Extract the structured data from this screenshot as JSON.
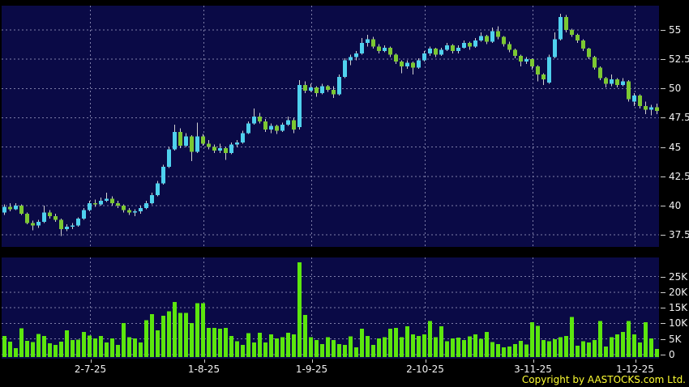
{
  "copyright": "Copyright by AASTOCKS.com Ltd.",
  "colors": {
    "background": "#000000",
    "panel_background": "#0a0a46",
    "grid": "#7d7da8",
    "up_candle": "#4fd1ee",
    "down_candle": "#7cc832",
    "wick": "#d0d0d0",
    "volume_bar": "#5ce60e",
    "axis_text": "#f0f0f0",
    "copyright_text": "#ffff33"
  },
  "chart_data": {
    "type": "candlestick_with_volume",
    "title": "",
    "price_axis": {
      "side": "right",
      "ticks": [
        {
          "label": "55",
          "value": 55
        },
        {
          "label": "52.5",
          "value": 52.5
        },
        {
          "label": "50",
          "value": 50
        },
        {
          "label": "47.5",
          "value": 47.5
        },
        {
          "label": "45",
          "value": 45
        },
        {
          "label": "42.5",
          "value": 42.5
        },
        {
          "label": "40",
          "value": 40
        },
        {
          "label": "37.5",
          "value": 37.5
        }
      ],
      "range": [
        36.4,
        57.1
      ]
    },
    "volume_axis": {
      "side": "right",
      "ticks": [
        {
          "label": "25K",
          "value": 25
        },
        {
          "label": "20K",
          "value": 20
        },
        {
          "label": "15K",
          "value": 15
        },
        {
          "label": "10K",
          "value": 10
        },
        {
          "label": "5K",
          "value": 5
        },
        {
          "label": "0",
          "value": 0
        }
      ],
      "range": [
        0,
        31
      ]
    },
    "x_ticks": [
      {
        "index": 15,
        "label": "2-7-25"
      },
      {
        "index": 35,
        "label": "1-8-25"
      },
      {
        "index": 54,
        "label": "1-9-25"
      },
      {
        "index": 74,
        "label": "2-10-25"
      },
      {
        "index": 93,
        "label": "3-11-25"
      },
      {
        "index": 111,
        "label": "1-12-25"
      }
    ],
    "candles": [
      [
        39.4,
        40.1,
        39.2,
        39.9
      ],
      [
        39.9,
        40.2,
        39.5,
        39.7
      ],
      [
        39.7,
        40.2,
        39.6,
        40.0
      ],
      [
        40.0,
        40.1,
        39.2,
        39.3
      ],
      [
        39.3,
        39.4,
        38.4,
        38.5
      ],
      [
        38.5,
        38.7,
        37.9,
        38.3
      ],
      [
        38.3,
        38.8,
        38.1,
        38.6
      ],
      [
        38.6,
        40.0,
        38.5,
        39.4
      ],
      [
        39.4,
        39.6,
        38.9,
        39.1
      ],
      [
        39.1,
        39.3,
        38.6,
        38.8
      ],
      [
        38.8,
        38.9,
        37.4,
        38.0
      ],
      [
        38.0,
        38.4,
        37.8,
        38.2
      ],
      [
        38.2,
        38.5,
        38.0,
        38.3
      ],
      [
        38.3,
        39.0,
        38.2,
        38.9
      ],
      [
        38.9,
        39.8,
        38.8,
        39.6
      ],
      [
        39.6,
        40.4,
        39.5,
        40.2
      ],
      [
        40.2,
        40.5,
        39.9,
        40.1
      ],
      [
        40.1,
        40.7,
        40.0,
        40.4
      ],
      [
        40.4,
        41.1,
        40.3,
        40.6
      ],
      [
        40.6,
        40.8,
        40.0,
        40.2
      ],
      [
        40.2,
        40.4,
        39.8,
        40.0
      ],
      [
        40.0,
        40.1,
        39.4,
        39.6
      ],
      [
        39.6,
        39.8,
        39.2,
        39.4
      ],
      [
        39.4,
        39.7,
        39.1,
        39.5
      ],
      [
        39.5,
        40.0,
        39.3,
        39.8
      ],
      [
        39.8,
        40.4,
        39.7,
        40.2
      ],
      [
        40.2,
        41.1,
        40.1,
        40.9
      ],
      [
        40.9,
        42.1,
        40.8,
        41.9
      ],
      [
        41.9,
        43.5,
        41.8,
        43.3
      ],
      [
        43.3,
        45.0,
        43.2,
        44.8
      ],
      [
        44.8,
        46.9,
        44.7,
        46.3
      ],
      [
        46.3,
        46.6,
        44.9,
        45.1
      ],
      [
        45.1,
        46.2,
        45.0,
        45.9
      ],
      [
        45.9,
        46.0,
        43.8,
        44.6
      ],
      [
        44.6,
        47.1,
        44.5,
        45.9
      ],
      [
        45.9,
        46.1,
        45.1,
        45.3
      ],
      [
        45.3,
        45.6,
        44.8,
        45.0
      ],
      [
        45.0,
        45.2,
        44.5,
        44.7
      ],
      [
        44.7,
        45.3,
        44.5,
        44.9
      ],
      [
        44.9,
        45.0,
        43.9,
        44.5
      ],
      [
        44.5,
        45.4,
        44.4,
        45.2
      ],
      [
        45.2,
        45.6,
        45.0,
        45.4
      ],
      [
        45.4,
        46.4,
        45.3,
        46.2
      ],
      [
        46.2,
        47.2,
        46.1,
        47.0
      ],
      [
        47.0,
        48.3,
        46.9,
        47.6
      ],
      [
        47.6,
        47.9,
        47.0,
        47.2
      ],
      [
        47.2,
        47.4,
        46.3,
        46.5
      ],
      [
        46.5,
        47.0,
        46.2,
        46.8
      ],
      [
        46.8,
        46.9,
        46.1,
        46.4
      ],
      [
        46.4,
        47.1,
        46.3,
        46.9
      ],
      [
        46.9,
        47.6,
        46.8,
        47.3
      ],
      [
        47.3,
        47.5,
        46.2,
        46.5
      ],
      [
        46.7,
        50.7,
        46.5,
        50.3
      ],
      [
        50.3,
        50.6,
        49.6,
        49.8
      ],
      [
        49.8,
        50.4,
        49.7,
        50.1
      ],
      [
        50.1,
        50.2,
        49.3,
        49.6
      ],
      [
        49.6,
        50.4,
        49.5,
        50.2
      ],
      [
        50.2,
        50.3,
        49.7,
        49.9
      ],
      [
        49.9,
        50.2,
        49.2,
        49.5
      ],
      [
        49.5,
        51.2,
        49.4,
        51.0
      ],
      [
        51.0,
        52.6,
        50.9,
        52.4
      ],
      [
        52.4,
        52.9,
        52.0,
        52.7
      ],
      [
        52.7,
        53.2,
        52.4,
        53.0
      ],
      [
        53.0,
        54.3,
        52.9,
        53.9
      ],
      [
        53.9,
        54.6,
        53.6,
        54.2
      ],
      [
        54.2,
        54.4,
        53.4,
        53.6
      ],
      [
        53.6,
        53.8,
        53.0,
        53.2
      ],
      [
        53.2,
        53.7,
        53.1,
        53.5
      ],
      [
        53.5,
        53.6,
        52.7,
        52.9
      ],
      [
        52.9,
        53.0,
        52.1,
        52.3
      ],
      [
        52.3,
        52.4,
        51.3,
        51.9
      ],
      [
        51.9,
        52.4,
        51.7,
        52.2
      ],
      [
        52.2,
        52.3,
        51.2,
        51.8
      ],
      [
        51.8,
        52.6,
        51.7,
        52.4
      ],
      [
        52.4,
        53.2,
        52.3,
        53.0
      ],
      [
        53.0,
        53.6,
        52.8,
        53.4
      ],
      [
        53.4,
        53.5,
        52.7,
        52.9
      ],
      [
        52.9,
        53.5,
        52.8,
        53.3
      ],
      [
        53.3,
        53.9,
        53.2,
        53.7
      ],
      [
        53.7,
        53.8,
        53.0,
        53.2
      ],
      [
        53.2,
        53.7,
        53.0,
        53.5
      ],
      [
        53.5,
        54.1,
        53.4,
        53.9
      ],
      [
        53.9,
        54.0,
        53.3,
        53.6
      ],
      [
        53.6,
        54.3,
        53.5,
        54.1
      ],
      [
        54.1,
        54.8,
        54.0,
        54.5
      ],
      [
        54.5,
        54.6,
        53.8,
        54.0
      ],
      [
        54.0,
        55.2,
        53.9,
        54.9
      ],
      [
        54.9,
        55.3,
        54.2,
        54.4
      ],
      [
        54.4,
        54.5,
        53.6,
        53.8
      ],
      [
        53.8,
        54.0,
        53.1,
        53.3
      ],
      [
        53.3,
        53.4,
        52.6,
        52.8
      ],
      [
        52.8,
        52.9,
        51.9,
        52.3
      ],
      [
        52.3,
        52.7,
        52.1,
        52.5
      ],
      [
        52.5,
        52.6,
        51.6,
        51.9
      ],
      [
        51.9,
        52.0,
        50.6,
        51.2
      ],
      [
        51.2,
        51.3,
        50.3,
        50.8
      ],
      [
        50.5,
        52.9,
        50.4,
        52.7
      ],
      [
        52.7,
        54.8,
        52.6,
        54.2
      ],
      [
        54.2,
        56.4,
        54.1,
        56.1
      ],
      [
        56.1,
        56.3,
        54.8,
        55.0
      ],
      [
        55.0,
        55.1,
        54.4,
        54.6
      ],
      [
        54.6,
        54.7,
        53.9,
        54.1
      ],
      [
        54.1,
        54.2,
        53.2,
        53.4
      ],
      [
        53.4,
        53.5,
        52.5,
        52.7
      ],
      [
        52.7,
        52.8,
        51.6,
        51.8
      ],
      [
        51.8,
        51.9,
        50.7,
        50.9
      ],
      [
        50.9,
        51.0,
        50.1,
        50.4
      ],
      [
        50.4,
        51.2,
        50.2,
        50.8
      ],
      [
        50.8,
        50.9,
        50.1,
        50.3
      ],
      [
        50.3,
        50.9,
        50.2,
        50.6
      ],
      [
        50.6,
        50.7,
        48.9,
        49.1
      ],
      [
        48.9,
        49.6,
        48.5,
        49.4
      ],
      [
        49.4,
        49.5,
        48.3,
        48.5
      ],
      [
        48.5,
        48.9,
        47.8,
        48.2
      ],
      [
        48.2,
        48.6,
        47.7,
        48.4
      ],
      [
        48.4,
        48.7,
        47.8,
        48.1
      ]
    ],
    "volumes": [
      6.0,
      4.2,
      2.1,
      8.4,
      4.4,
      4.0,
      6.6,
      6.0,
      3.6,
      3.1,
      4.1,
      7.8,
      4.7,
      4.8,
      7.3,
      6.1,
      5.2,
      6.0,
      3.9,
      5.2,
      3.1,
      10.1,
      5.6,
      5.2,
      3.9,
      11.0,
      13.0,
      7.8,
      12.4,
      13.8,
      16.9,
      13.4,
      13.4,
      10.1,
      16.4,
      16.4,
      8.6,
      8.6,
      8.3,
      8.6,
      5.9,
      4.3,
      3.1,
      6.9,
      3.9,
      7.0,
      3.9,
      6.5,
      5.2,
      5.6,
      7.0,
      6.5,
      29.5,
      12.7,
      5.6,
      4.7,
      3.4,
      5.6,
      4.7,
      3.4,
      3.1,
      5.8,
      2.3,
      8.3,
      6.0,
      3.1,
      5.2,
      5.6,
      8.3,
      8.6,
      5.6,
      9.1,
      6.5,
      6.0,
      6.5,
      10.8,
      5.6,
      9.1,
      4.3,
      5.2,
      5.5,
      4.7,
      5.8,
      6.5,
      5.1,
      7.3,
      4.0,
      3.4,
      2.3,
      2.6,
      3.4,
      4.4,
      3.3,
      10.4,
      9.2,
      4.7,
      4.3,
      4.9,
      5.6,
      6.0,
      12.1,
      2.9,
      4.3,
      3.9,
      4.7,
      10.8,
      2.6,
      5.6,
      6.5,
      7.3,
      10.8,
      6.5,
      3.9,
      10.4,
      5.2,
      1.8
    ]
  }
}
